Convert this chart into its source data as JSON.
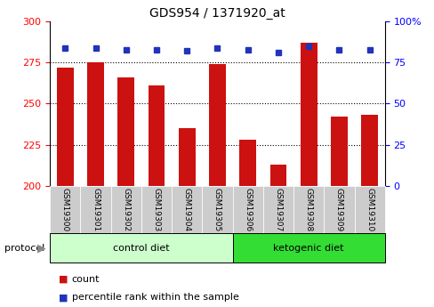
{
  "title": "GDS954 / 1371920_at",
  "samples": [
    "GSM19300",
    "GSM19301",
    "GSM19302",
    "GSM19303",
    "GSM19304",
    "GSM19305",
    "GSM19306",
    "GSM19307",
    "GSM19308",
    "GSM19309",
    "GSM19310"
  ],
  "counts": [
    272,
    275,
    266,
    261,
    235,
    274,
    228,
    213,
    287,
    242,
    243
  ],
  "percentile_ranks": [
    84,
    84,
    83,
    83,
    82,
    84,
    83,
    81,
    85,
    83,
    83
  ],
  "left_ylim": [
    200,
    300
  ],
  "right_ylim": [
    0,
    100
  ],
  "left_yticks": [
    200,
    225,
    250,
    275,
    300
  ],
  "right_yticks": [
    0,
    25,
    50,
    75,
    100
  ],
  "bar_color": "#cc1111",
  "dot_color": "#2233bb",
  "bar_width": 0.55,
  "control_diet_indices": [
    0,
    1,
    2,
    3,
    4,
    5
  ],
  "ketogenic_diet_indices": [
    6,
    7,
    8,
    9,
    10
  ],
  "control_diet_label": "control diet",
  "ketogenic_diet_label": "ketogenic diet",
  "protocol_label": "protocol",
  "legend_count_label": "count",
  "legend_percentile_label": "percentile rank within the sample",
  "control_bg": "#ccffcc",
  "ketogenic_bg": "#33dd33",
  "tick_bg": "#cccccc",
  "title_fontsize": 10,
  "tick_fontsize": 8,
  "grid_dotted_values": [
    225,
    250,
    275
  ]
}
